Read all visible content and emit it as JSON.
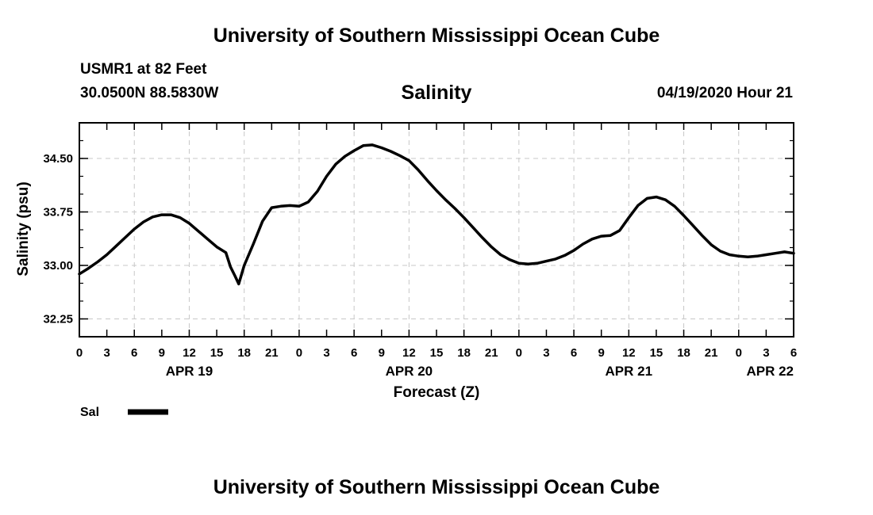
{
  "page_title": "University of Southern Mississippi Ocean Cube",
  "footer_title": "University of Southern Mississippi Ocean Cube",
  "station": {
    "name": "USMR1 at 82 Feet",
    "coords": "30.0500N 88.5830W",
    "timestamp": "04/19/2020 Hour 21"
  },
  "legend": {
    "label": "Sal",
    "color": "#000000"
  },
  "chart_data": {
    "type": "line",
    "title": "Salinity",
    "xlabel": "Forecast (Z)",
    "ylabel": "Salinity (psu)",
    "xlim": [
      0,
      78
    ],
    "ylim": [
      32.0,
      35.0
    ],
    "grid": true,
    "grid_style": "dashed",
    "x_ticks": [
      {
        "h": 0,
        "label": "0"
      },
      {
        "h": 3,
        "label": "3"
      },
      {
        "h": 6,
        "label": "6"
      },
      {
        "h": 9,
        "label": "9"
      },
      {
        "h": 12,
        "label": "12"
      },
      {
        "h": 15,
        "label": "15"
      },
      {
        "h": 18,
        "label": "18"
      },
      {
        "h": 21,
        "label": "21"
      },
      {
        "h": 24,
        "label": "0"
      },
      {
        "h": 27,
        "label": "3"
      },
      {
        "h": 30,
        "label": "6"
      },
      {
        "h": 33,
        "label": "9"
      },
      {
        "h": 36,
        "label": "12"
      },
      {
        "h": 39,
        "label": "15"
      },
      {
        "h": 42,
        "label": "18"
      },
      {
        "h": 45,
        "label": "21"
      },
      {
        "h": 48,
        "label": "0"
      },
      {
        "h": 51,
        "label": "3"
      },
      {
        "h": 54,
        "label": "6"
      },
      {
        "h": 57,
        "label": "9"
      },
      {
        "h": 60,
        "label": "12"
      },
      {
        "h": 63,
        "label": "15"
      },
      {
        "h": 66,
        "label": "18"
      },
      {
        "h": 69,
        "label": "21"
      },
      {
        "h": 72,
        "label": "0"
      },
      {
        "h": 75,
        "label": "3"
      },
      {
        "h": 78,
        "label": "6"
      }
    ],
    "day_labels": [
      {
        "h": 12,
        "label": "APR 19"
      },
      {
        "h": 36,
        "label": "APR 20"
      },
      {
        "h": 60,
        "label": "APR 21"
      },
      {
        "h": 78,
        "label": "APR 22"
      }
    ],
    "y_ticks": [
      {
        "v": 32.25,
        "label": "32.25"
      },
      {
        "v": 33.0,
        "label": "33.00"
      },
      {
        "v": 33.75,
        "label": "33.75"
      },
      {
        "v": 34.5,
        "label": "34.50"
      }
    ],
    "series": [
      {
        "name": "Sal",
        "x": [
          0,
          1,
          2,
          3,
          4,
          5,
          6,
          7,
          8,
          9,
          10,
          11,
          12,
          13,
          14,
          15,
          16,
          16.5,
          17,
          17.4,
          18,
          19,
          20,
          21,
          22,
          23,
          24,
          25,
          26,
          27,
          28,
          29,
          30,
          31,
          32,
          33,
          34,
          35,
          36,
          37,
          38,
          39,
          40,
          41,
          42,
          43,
          44,
          45,
          46,
          47,
          48,
          49,
          50,
          51,
          52,
          53,
          54,
          55,
          56,
          57,
          58,
          59,
          60,
          61,
          62,
          63,
          64,
          65,
          66,
          67,
          68,
          69,
          70,
          71,
          72,
          73,
          74,
          75,
          76,
          77,
          78
        ],
        "y": [
          32.88,
          32.96,
          33.05,
          33.15,
          33.27,
          33.39,
          33.51,
          33.61,
          33.68,
          33.71,
          33.71,
          33.67,
          33.59,
          33.48,
          33.37,
          33.26,
          33.18,
          32.98,
          32.85,
          32.74,
          33.0,
          33.3,
          33.62,
          33.81,
          33.83,
          33.84,
          33.83,
          33.89,
          34.04,
          34.25,
          34.42,
          34.53,
          34.61,
          34.68,
          34.69,
          34.65,
          34.6,
          34.54,
          34.47,
          34.34,
          34.19,
          34.05,
          33.92,
          33.8,
          33.67,
          33.53,
          33.39,
          33.26,
          33.15,
          33.08,
          33.03,
          33.02,
          33.03,
          33.06,
          33.09,
          33.14,
          33.21,
          33.3,
          33.37,
          33.41,
          33.42,
          33.49,
          33.67,
          33.84,
          33.94,
          33.96,
          33.92,
          33.83,
          33.7,
          33.56,
          33.42,
          33.29,
          33.2,
          33.15,
          33.13,
          33.12,
          33.13,
          33.15,
          33.17,
          33.19,
          33.17
        ]
      }
    ]
  }
}
